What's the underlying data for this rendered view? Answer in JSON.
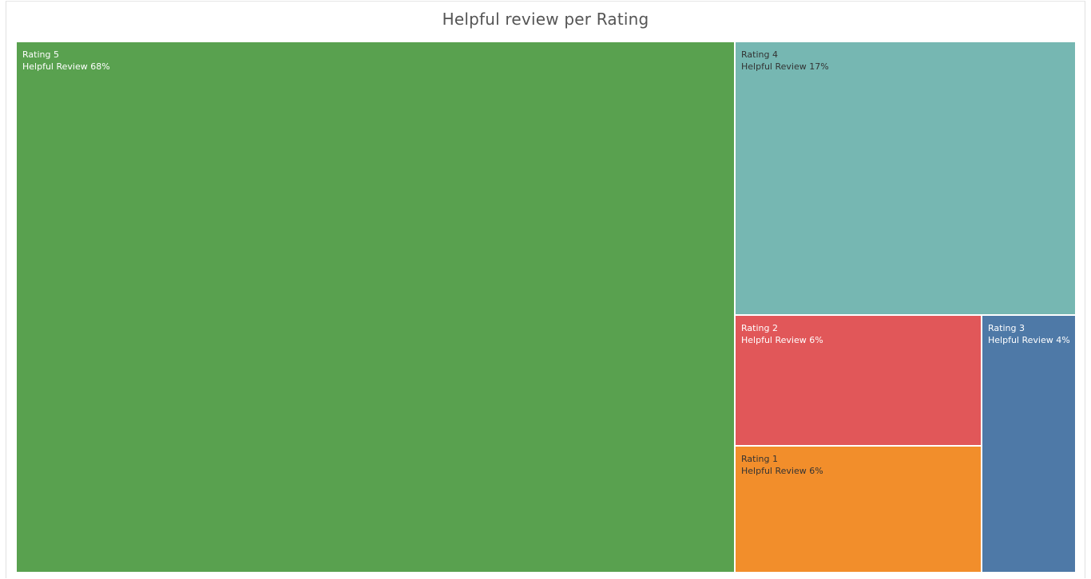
{
  "chart_data": {
    "type": "treemap",
    "title": "Helpful review per Rating",
    "tiles": [
      {
        "label": "Rating 5",
        "metric": "Helpful Review",
        "value": 68,
        "value_label": "68%",
        "color": "#59a14f",
        "text_color": "#ffffff"
      },
      {
        "label": "Rating 4",
        "metric": "Helpful Review",
        "value": 17,
        "value_label": "17%",
        "color": "#76b7b2",
        "text_color": "#333333"
      },
      {
        "label": "Rating 2",
        "metric": "Helpful Review",
        "value": 6,
        "value_label": "6%",
        "color": "#e15759",
        "text_color": "#ffffff"
      },
      {
        "label": "Rating 1",
        "metric": "Helpful Review",
        "value": 6,
        "value_label": "6%",
        "color": "#f28e2b",
        "text_color": "#333333"
      },
      {
        "label": "Rating 3",
        "metric": "Helpful Review",
        "value": 4,
        "value_label": "4%",
        "color": "#4e79a7",
        "text_color": "#ffffff"
      }
    ]
  }
}
